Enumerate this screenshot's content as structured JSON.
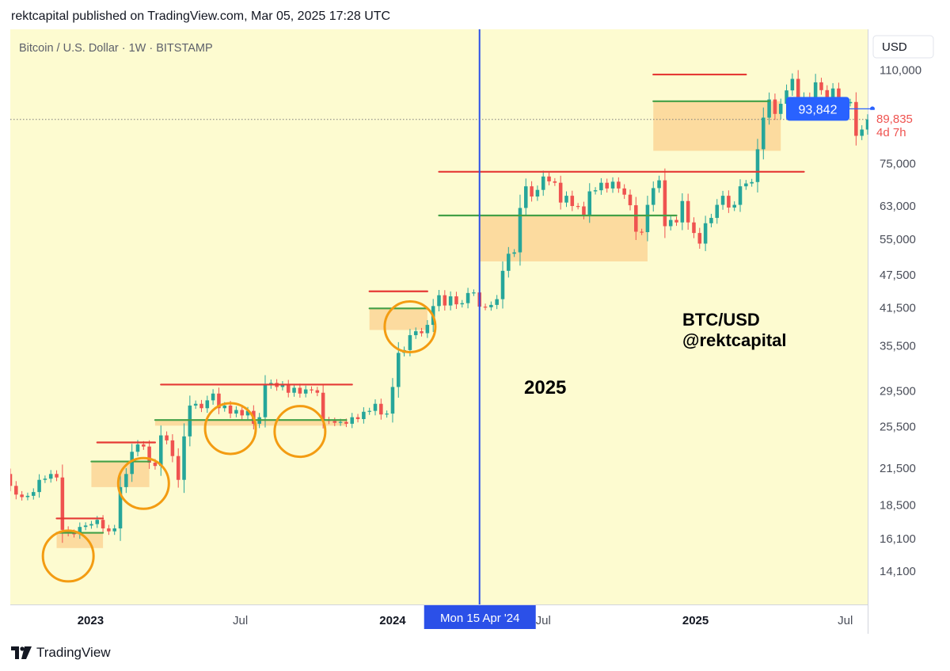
{
  "header": {
    "published_text": "rektcapital published on TradingView.com, Mar 05, 2025 17:28 UTC"
  },
  "footer": {
    "brand": "TradingView"
  },
  "colors": {
    "background": "#fdfbd0",
    "up": "#26a69a",
    "down": "#ef5350",
    "resistance": "#e53935",
    "support": "#43a047",
    "zone": "#fcd596",
    "circle": "#f39c12",
    "crosshair": "#2b50e8",
    "price_badge": "#2962ff",
    "last_price": "#ef5350"
  },
  "chart_data": {
    "type": "candlestick",
    "title": "Bitcoin / U.S. Dollar · 1W · BITSTAMP",
    "currency_label": "USD",
    "y_scale": "log",
    "ylim": [
      12300,
      130000
    ],
    "xlim": [
      "2022-09-26",
      "2025-07-28"
    ],
    "y_ticks": [
      110000,
      75000,
      63000,
      55000,
      47500,
      41500,
      35500,
      29500,
      25500,
      21500,
      18500,
      16100,
      14100
    ],
    "y_tick_labels": [
      "110,000",
      "75,000",
      "63,000",
      "55,000",
      "47,500",
      "41,500",
      "35,500",
      "29,500",
      "25,500",
      "21,500",
      "18,500",
      "16,100",
      "14,100"
    ],
    "x_ticks": [
      {
        "date": "2023-01-01",
        "label": "2023",
        "bold": true
      },
      {
        "date": "2023-07-01",
        "label": "Jul",
        "bold": false
      },
      {
        "date": "2024-01-01",
        "label": "2024",
        "bold": true
      },
      {
        "date": "2024-07-01",
        "label": "Jul",
        "bold": false
      },
      {
        "date": "2025-01-01",
        "label": "2025",
        "bold": true
      },
      {
        "date": "2025-07-01",
        "label": "Jul",
        "bold": false
      }
    ],
    "crosshair": {
      "date": "2024-04-15",
      "label": "Mon 15 Apr '24"
    },
    "price_badge": {
      "value": 93842,
      "label": "93,842"
    },
    "last_price": {
      "value": 89835,
      "label": "89,835",
      "countdown": "4d 7h"
    },
    "annotations": {
      "pair": "BTC/USD",
      "author": "@rektcapital",
      "year": "2025"
    },
    "closes": [
      20000,
      19300,
      19100,
      19200,
      19500,
      20500,
      20600,
      21000,
      20700,
      16700,
      16500,
      16400,
      16900,
      17000,
      17100,
      17400,
      16800,
      16600,
      16800,
      19900,
      21000,
      23000,
      23700,
      23500,
      22000,
      21700,
      24600,
      24100,
      22600,
      20500,
      24500,
      27800,
      28000,
      27500,
      28400,
      29200,
      27500,
      27800,
      26900,
      27300,
      26700,
      27200,
      25800,
      26500,
      30200,
      30500,
      30000,
      30300,
      29300,
      29900,
      29200,
      29700,
      29600,
      29300,
      26200,
      26100,
      25900,
      26000,
      25800,
      26500,
      26300,
      27100,
      27200,
      28000,
      26800,
      26900,
      30000,
      34500,
      34900,
      37100,
      37700,
      37400,
      38700,
      41800,
      43700,
      41900,
      43500,
      42100,
      42300,
      44100,
      44200,
      41700,
      41600,
      42000,
      43000,
      48300,
      51800,
      52100,
      62500,
      68300,
      65500,
      67300,
      71100,
      69700,
      69300,
      63900,
      65700,
      63000,
      62900,
      60800,
      66900,
      67200,
      69300,
      67700,
      69600,
      67700,
      66000,
      63200,
      56700,
      56600,
      63300,
      67800,
      70000,
      58000,
      59500,
      58900,
      64300,
      58900,
      56400,
      54000,
      58700,
      60000,
      63300,
      65700,
      62600,
      63300,
      68300,
      69100,
      69500,
      79500,
      90500,
      97500,
      91900,
      95800,
      101200,
      106100,
      94300,
      98300,
      94500,
      104600,
      101300,
      97500,
      102000,
      96400,
      96000,
      96500,
      84000,
      86200,
      89835
    ],
    "levels": [
      {
        "kind": "resistance",
        "y": 17500,
        "from": "2022-11-21",
        "to": "2023-01-16"
      },
      {
        "kind": "support",
        "y": 16500,
        "from": "2022-11-21",
        "to": "2023-01-16"
      },
      {
        "kind": "resistance",
        "y": 23900,
        "from": "2023-01-09",
        "to": "2023-03-20"
      },
      {
        "kind": "support",
        "y": 22100,
        "from": "2023-01-02",
        "to": "2023-03-13"
      },
      {
        "kind": "resistance",
        "y": 30300,
        "from": "2023-03-27",
        "to": "2023-11-13"
      },
      {
        "kind": "support",
        "y": 26200,
        "from": "2023-03-20",
        "to": "2023-11-06"
      },
      {
        "kind": "resistance",
        "y": 44400,
        "from": "2023-12-04",
        "to": "2024-02-12"
      },
      {
        "kind": "support",
        "y": 41400,
        "from": "2023-12-04",
        "to": "2024-02-12"
      },
      {
        "kind": "resistance",
        "y": 72500,
        "from": "2024-02-26",
        "to": "2025-05-12"
      },
      {
        "kind": "support",
        "y": 60600,
        "from": "2024-02-26",
        "to": "2024-12-09"
      },
      {
        "kind": "resistance",
        "y": 108000,
        "from": "2024-11-11",
        "to": "2025-03-03"
      },
      {
        "kind": "support",
        "y": 96800,
        "from": "2024-11-11",
        "to": "2025-03-31"
      }
    ],
    "zones": [
      {
        "from": "2022-11-21",
        "to": "2023-01-16",
        "y_top": 16500,
        "y_bottom": 15500
      },
      {
        "from": "2023-01-02",
        "to": "2023-03-13",
        "y_top": 22100,
        "y_bottom": 19900
      },
      {
        "from": "2023-03-20",
        "to": "2023-11-06",
        "y_top": 26200,
        "y_bottom": 25600
      },
      {
        "from": "2023-12-04",
        "to": "2024-02-12",
        "y_top": 41400,
        "y_bottom": 37900
      },
      {
        "from": "2024-04-15",
        "to": "2024-11-04",
        "y_top": 60600,
        "y_bottom": 50200
      },
      {
        "from": "2024-11-11",
        "to": "2025-04-14",
        "y_top": 96800,
        "y_bottom": 79000
      }
    ],
    "circles": [
      {
        "date": "2022-12-05",
        "y": 15000
      },
      {
        "date": "2023-03-06",
        "y": 20200
      },
      {
        "date": "2023-06-19",
        "y": 25300
      },
      {
        "date": "2023-09-11",
        "y": 25000
      },
      {
        "date": "2024-01-22",
        "y": 38400
      }
    ]
  }
}
